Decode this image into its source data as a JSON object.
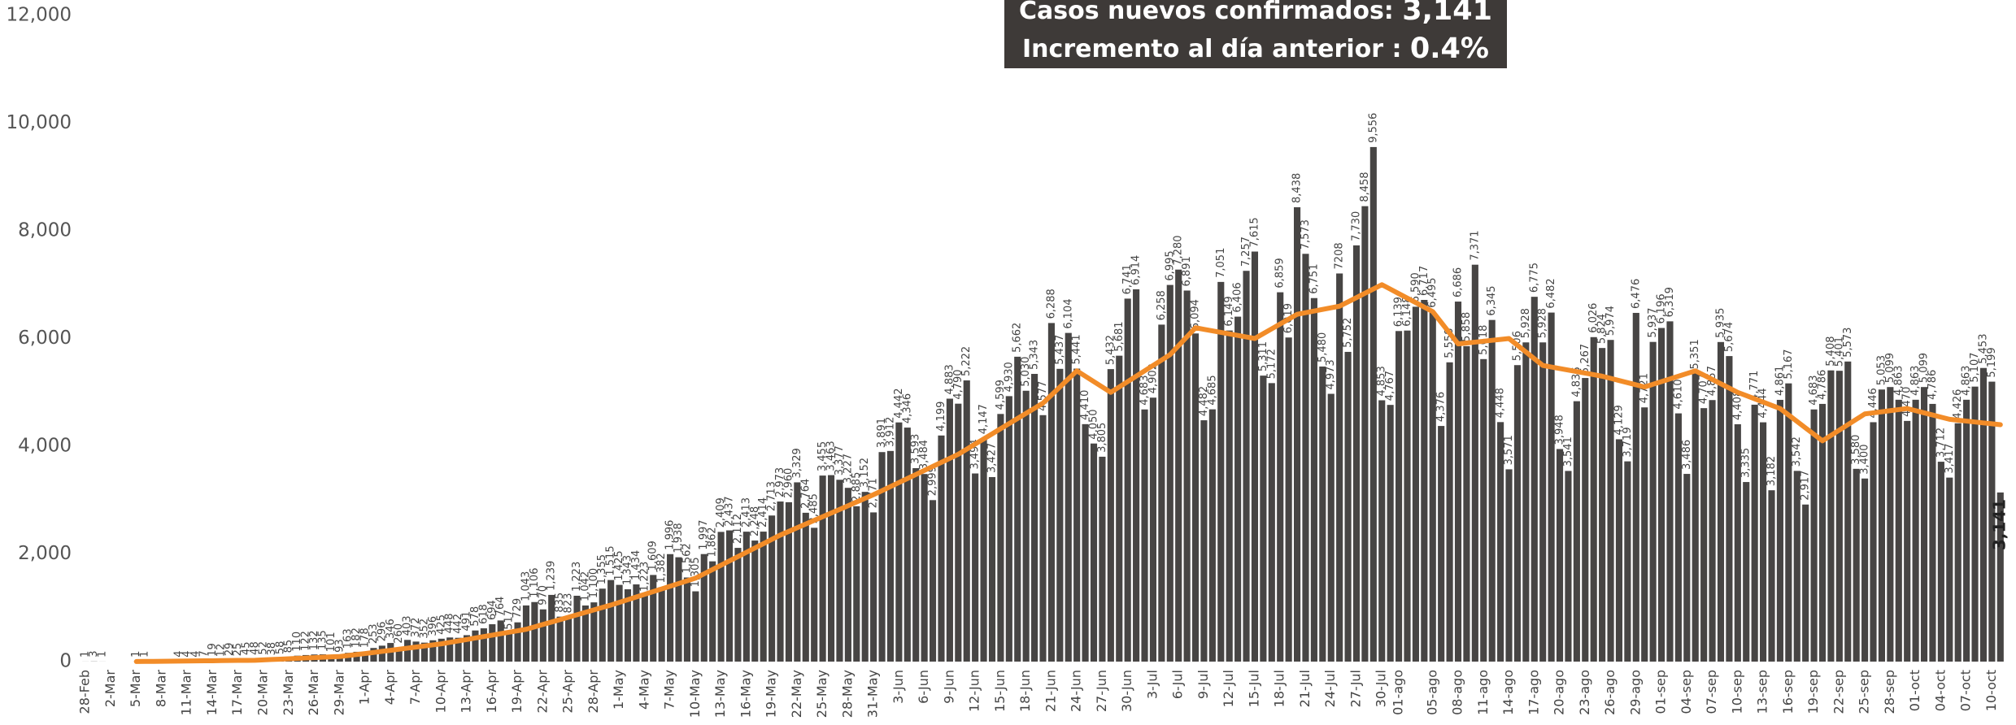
{
  "chart_data": {
    "type": "bar",
    "headline": {
      "label": "Casos nuevos confirmados:",
      "value": "3,141"
    },
    "subheadline": {
      "label": "Incremento al día anterior :",
      "value": "0.4%"
    },
    "categories": [
      "28-Feb",
      null,
      null,
      "2-Mar",
      null,
      null,
      "5-Mar",
      null,
      null,
      "8-Mar",
      null,
      null,
      "11-Mar",
      null,
      null,
      "14-Mar",
      null,
      null,
      "17-Mar",
      null,
      null,
      "20-Mar",
      null,
      null,
      "23-Mar",
      null,
      null,
      "26-Mar",
      null,
      null,
      "29-Mar",
      null,
      null,
      "1-Apr",
      null,
      null,
      "4-Apr",
      null,
      null,
      "7-Apr",
      null,
      null,
      "10-Apr",
      null,
      null,
      "13-Apr",
      null,
      null,
      "16-Apr",
      null,
      null,
      "19-Apr",
      null,
      null,
      "22-Apr",
      null,
      null,
      "25-Apr",
      null,
      null,
      "28-Apr",
      null,
      null,
      "1-May",
      null,
      null,
      "4-May",
      null,
      null,
      "7-May",
      null,
      null,
      "10-May",
      null,
      null,
      "13-May",
      null,
      null,
      "16-May",
      null,
      null,
      "19-May",
      null,
      null,
      "22-May",
      null,
      null,
      "25-May",
      null,
      null,
      "28-May",
      null,
      null,
      "31-May",
      null,
      null,
      "3-Jun",
      null,
      null,
      "6-Jun",
      null,
      null,
      "9-Jun",
      null,
      null,
      "12-Jun",
      null,
      null,
      "15-Jun",
      null,
      null,
      "18-Jun",
      null,
      null,
      "21-Jun",
      null,
      null,
      "24-Jun",
      null,
      null,
      "27-Jun",
      null,
      null,
      "30-Jun",
      null,
      null,
      "3-Jul",
      null,
      null,
      "6-Jul",
      null,
      null,
      "9-Jul",
      null,
      null,
      "12-Jul",
      null,
      null,
      "15-Jul",
      null,
      null,
      "18-Jul",
      null,
      null,
      "21-Jul",
      null,
      null,
      "24-Jul",
      null,
      null,
      "27-Jul",
      null,
      null,
      "30-Jul",
      null,
      "01-ago",
      null,
      null,
      null,
      "05-ago",
      null,
      null,
      "08-ago",
      null,
      null,
      "11-ago",
      null,
      null,
      "14-ago",
      null,
      null,
      "17-ago",
      null,
      null,
      "20-ago",
      null,
      null,
      "23-ago",
      null,
      null,
      "26-ago",
      null,
      null,
      "29-ago",
      null,
      null,
      "01-sep",
      null,
      null,
      "04-sep",
      null,
      null,
      "07-sep",
      null,
      null,
      "10-sep",
      null,
      null,
      "13-sep",
      null,
      null,
      "16-sep",
      null,
      null,
      "19-sep",
      null,
      null,
      "22-sep",
      null,
      null,
      "25-sep",
      null,
      null,
      "28-sep",
      null,
      null,
      "01-oct",
      null,
      null,
      "04-oct",
      null,
      null,
      "07-oct",
      null,
      null,
      "10-oct",
      null
    ],
    "series": [
      {
        "type": "bar",
        "color": "#474544",
        "values": [
          1,
          3,
          1,
          0,
          0,
          0,
          1,
          1,
          0,
          0,
          0,
          4,
          4,
          4,
          7,
          19,
          12,
          29,
          25,
          45,
          48,
          52,
          38,
          58,
          85,
          110,
          122,
          132,
          135,
          101,
          93,
          163,
          182,
          178,
          253,
          296,
          346,
          260,
          403,
          372,
          352,
          396,
          425,
          448,
          442,
          491,
          578,
          618,
          694,
          764,
          517,
          729,
          1043,
          1106,
          970,
          1239,
          835,
          823,
          1223,
          1042,
          1100,
          1355,
          1515,
          1425,
          1343,
          1434,
          1223,
          1609,
          1382,
          1996,
          1938,
          1562,
          1305,
          1997,
          1862,
          2409,
          2437,
          2112,
          2413,
          2248,
          2414,
          2713,
          2973,
          2960,
          3329,
          2764,
          2485,
          3455,
          3463,
          3377,
          3227,
          2885,
          3152,
          2771,
          3891,
          3912,
          4442,
          4346,
          3593,
          3484,
          2999,
          4199,
          4883,
          4790,
          5222,
          3494,
          4147,
          3427,
          4599,
          4930,
          5662,
          5030,
          5343,
          4577,
          6288,
          5437,
          6104,
          5441,
          4410,
          4050,
          3805,
          5432,
          5681,
          6741,
          6914,
          4683,
          4902,
          6258,
          6995,
          7280,
          6891,
          6094,
          4482,
          4685,
          7051,
          6149,
          6406,
          7257,
          7615,
          5311,
          5172,
          6859,
          6019,
          8438,
          7573,
          6751,
          5480,
          4973,
          7208,
          5752,
          7730,
          8458,
          9556,
          4853,
          4767,
          6139,
          6148,
          6590,
          6717,
          6495,
          4376,
          5558,
          6686,
          5858,
          7371,
          5618,
          6345,
          4448,
          3571,
          5506,
          5928,
          6775,
          5928,
          6482,
          3948,
          3541,
          4836,
          5267,
          6026,
          5824,
          5974,
          4129,
          3719,
          6476,
          4721,
          5937,
          6196,
          6319,
          4610,
          3486,
          5351,
          4707,
          4857,
          5935,
          5674,
          4408,
          3335,
          4771,
          4444,
          3182,
          4861,
          5167,
          3542,
          2917,
          4683,
          4786,
          5408,
          5401,
          5573,
          3580,
          3400,
          4446,
          5053,
          5099,
          4863,
          4470,
          4863,
          5099,
          4786,
          3712,
          3417,
          4426,
          4863,
          5107,
          5453,
          5199,
          3141
        ],
        "value_labels": [
          "1",
          "3",
          "1",
          null,
          null,
          null,
          "1",
          "1",
          null,
          null,
          null,
          "4",
          "4",
          "4",
          "7",
          "19",
          "12",
          "29",
          "25",
          "45",
          "48",
          "52",
          "38",
          "58",
          "85",
          "110",
          "122",
          "132",
          "135",
          "101",
          "93",
          "163",
          "182",
          "178",
          "253",
          "296",
          "346",
          "260",
          "403",
          "372",
          "352",
          "396",
          "425",
          "448",
          "442",
          "491",
          "578",
          "618",
          "694",
          "764",
          "517",
          "729",
          "1,043",
          "1,106",
          "970",
          "1,239",
          "835",
          "823",
          "1,223",
          "1,042",
          "1,100",
          "1,355",
          "1,515",
          "1,425",
          "1,343",
          "1,434",
          "1,223",
          "1,609",
          "1,382",
          "1,996",
          "1,938",
          "1,562",
          "1,305",
          "1,997",
          "1,862",
          "2,409",
          "2,437",
          "2,112",
          "2,413",
          "2,248",
          "2,414",
          "2,713",
          "2,973",
          "2,960",
          "3,329",
          "2,764",
          "2,485",
          "3,455",
          "3,463",
          "3,377",
          "3,227",
          "2,885",
          "3,152",
          "2,771",
          "3,891",
          "3,912",
          "4,442",
          "4,346",
          "3,593",
          "3,484",
          "2,999",
          "4,199",
          "4,883",
          "4,790",
          "5,222",
          "3,494",
          "4,147",
          "3,427",
          "4,599",
          "4,930",
          "5,662",
          "5,030",
          "5,343",
          "4,577",
          "6,288",
          "5,437",
          "6,104",
          "5,441",
          "4,410",
          "4,050",
          "3,805",
          "5,432",
          "5,681",
          "6,741",
          "6,914",
          "4,683",
          "4,902",
          "6,258",
          "6,995",
          "7,280",
          "6,891",
          "6,094",
          "4,482",
          "4,685",
          "7,051",
          "6,149",
          "6,406",
          "7,257",
          "7,615",
          "5,311",
          "5,172",
          "6,859",
          "6,019",
          "8,438",
          "7,573",
          "6,751",
          "5,480",
          "4,973",
          "7208",
          "5,752",
          "7,730",
          "8,458",
          "9,556",
          "4,853",
          "4,767",
          "6,139",
          "6,148",
          "6,590",
          "6,717",
          "6,495",
          "4,376",
          "5,558",
          "6,686",
          "5,858",
          "7,371",
          "5,618",
          "6,345",
          "4,448",
          "3,571",
          "5,506",
          "5,928",
          "6,775",
          "5,928",
          "6,482",
          "3,948",
          "3,541",
          "4,836",
          "5,267",
          "6,026",
          "5,824",
          "5,974",
          "4,129",
          "3,719",
          "6,476",
          "4,721",
          "5,937",
          "6,196",
          "6,319",
          "4,610",
          "3,486",
          "5,351",
          "4,707",
          "4,857",
          "5,935",
          "5,674",
          "4,408",
          "3,335",
          "4,771",
          "4,444",
          "3,182",
          "4,861",
          "5,167",
          "3,542",
          "2,917",
          "4,683",
          "4,786",
          "5,408",
          "5,401",
          "5,573",
          "3,580",
          "3,400",
          "4,446",
          "5,053",
          "5,099",
          "4,863",
          "4,470",
          "4,863",
          "5,099",
          "4,786",
          "3,712",
          "3,417",
          "4,426",
          "4,863",
          "5,107",
          "5,453",
          "5,199",
          "3,141"
        ]
      },
      {
        "type": "line",
        "color": "#f28c28",
        "values": [
          null,
          null,
          null,
          null,
          null,
          null,
          1,
          3,
          4,
          6,
          8,
          10,
          11,
          13,
          15,
          16,
          18,
          20,
          22,
          23,
          25,
          32,
          39,
          46,
          53,
          60,
          67,
          74,
          81,
          88,
          95,
          113,
          132,
          150,
          170,
          190,
          210,
          230,
          250,
          270,
          290,
          310,
          330,
          357,
          384,
          411,
          438,
          465,
          492,
          519,
          546,
          573,
          600,
          645,
          690,
          735,
          780,
          825,
          870,
          915,
          960,
          1005,
          1050,
          1100,
          1150,
          1200,
          1250,
          1300,
          1350,
          1400,
          1450,
          1500,
          1550,
          1630,
          1710,
          1790,
          1870,
          1950,
          2030,
          2110,
          2190,
          2270,
          2350,
          2418,
          2486,
          2555,
          2623,
          2691,
          2759,
          2827,
          2895,
          2964,
          3032,
          3100,
          3175,
          3250,
          3325,
          3400,
          3475,
          3550,
          3625,
          3700,
          3775,
          3850,
          3945,
          4040,
          4135,
          4230,
          4325,
          4420,
          4515,
          4610,
          4705,
          4800,
          4950,
          5100,
          5250,
          5400,
          5300,
          5200,
          5100,
          5000,
          5100,
          5200,
          5300,
          5400,
          5500,
          5600,
          5700,
          5867,
          6033,
          6200,
          6171,
          6143,
          6114,
          6086,
          6057,
          6029,
          6000,
          6090,
          6180,
          6270,
          6360,
          6450,
          6480,
          6510,
          6540,
          6570,
          6600,
          6680,
          6760,
          6840,
          6920,
          7000,
          6917,
          6833,
          6750,
          6667,
          6583,
          6500,
          6300,
          6100,
          5900,
          5917,
          5933,
          5950,
          5967,
          5983,
          6000,
          5875,
          5750,
          5625,
          5500,
          5471,
          5443,
          5414,
          5386,
          5357,
          5329,
          5300,
          5260,
          5220,
          5180,
          5140,
          5100,
          5150,
          5200,
          5250,
          5300,
          5350,
          5400,
          5320,
          5240,
          5160,
          5080,
          5000,
          4940,
          4880,
          4820,
          4760,
          4700,
          4580,
          4460,
          4340,
          4220,
          4100,
          4200,
          4300,
          4400,
          4500,
          4600,
          4620,
          4640,
          4660,
          4680,
          4700,
          4660,
          4620,
          4580,
          4540,
          4500,
          4483,
          4467,
          4450,
          4433,
          4417,
          4400
        ]
      }
    ],
    "ylim": [
      0,
      12000
    ],
    "yticks": [
      0,
      {
        "value": 2000,
        "label": "2,000"
      },
      {
        "value": 4000,
        "label": "4,000"
      },
      {
        "value": 6000,
        "label": "6,000"
      },
      {
        "value": 8000,
        "label": "8,000"
      },
      {
        "value": 10000,
        "label": "10,000"
      },
      {
        "value": 12000,
        "label": "12,000"
      }
    ],
    "grid": false
  }
}
